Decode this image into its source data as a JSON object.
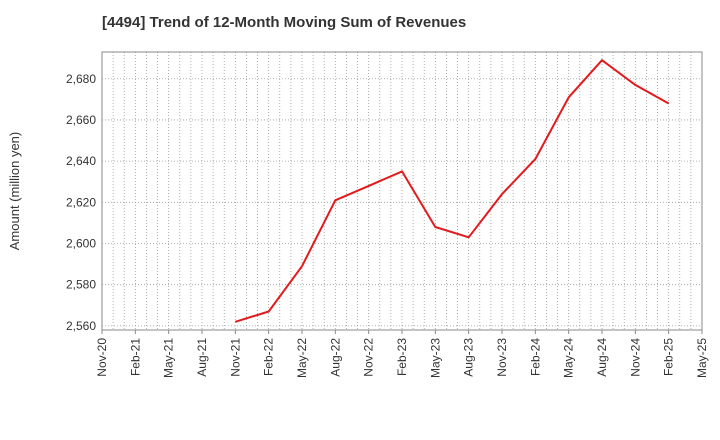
{
  "chart_data": {
    "type": "line",
    "title": "[4494]  Trend of 12-Month Moving Sum of Revenues",
    "ylabel": "Amount (million yen)",
    "xlabel": "",
    "x_ticks": [
      "Nov-20",
      "Feb-21",
      "May-21",
      "Aug-21",
      "Nov-21",
      "Feb-22",
      "May-22",
      "Aug-22",
      "Nov-22",
      "Feb-23",
      "May-23",
      "Aug-23",
      "Nov-23",
      "Feb-24",
      "May-24",
      "Aug-24",
      "Nov-24",
      "Feb-25",
      "May-25"
    ],
    "y_ticks": [
      2560,
      2580,
      2600,
      2620,
      2640,
      2660,
      2680
    ],
    "y_tick_labels": [
      "2,560",
      "2,580",
      "2,600",
      "2,620",
      "2,640",
      "2,660",
      "2,680"
    ],
    "ylim": [
      2558,
      2693
    ],
    "grid": true,
    "series": [
      {
        "color": "#e31a1c",
        "points": [
          {
            "x": "Nov-21",
            "y": 2562
          },
          {
            "x": "Feb-22",
            "y": 2567
          },
          {
            "x": "May-22",
            "y": 2589
          },
          {
            "x": "Aug-22",
            "y": 2621
          },
          {
            "x": "Nov-22",
            "y": 2628
          },
          {
            "x": "Feb-23",
            "y": 2635
          },
          {
            "x": "May-23",
            "y": 2608
          },
          {
            "x": "Aug-23",
            "y": 2603
          },
          {
            "x": "Nov-23",
            "y": 2624
          },
          {
            "x": "Feb-24",
            "y": 2641
          },
          {
            "x": "May-24",
            "y": 2671
          },
          {
            "x": "Aug-24",
            "y": 2689
          },
          {
            "x": "Nov-24",
            "y": 2677
          },
          {
            "x": "Feb-25",
            "y": 2668
          }
        ]
      }
    ]
  }
}
